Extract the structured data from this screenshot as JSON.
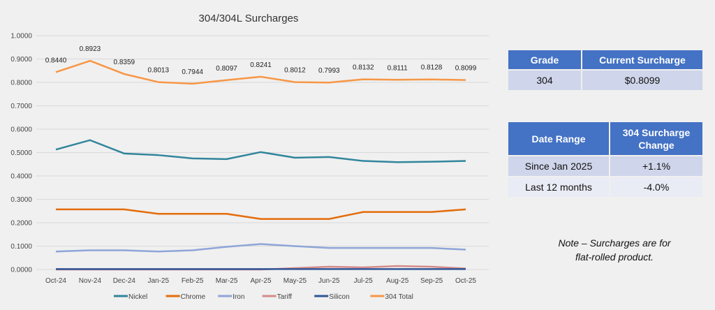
{
  "chart_data": {
    "type": "line",
    "title": "304/304L Surcharges",
    "categories": [
      "Oct-24",
      "Nov-24",
      "Dec-24",
      "Jan-25",
      "Feb-25",
      "Mar-25",
      "Apr-25",
      "May-25",
      "Jun-25",
      "Jul-25",
      "Aug-25",
      "Sep-25",
      "Oct-25"
    ],
    "ylim": [
      0,
      1.0
    ],
    "yticks": [
      "0.0000",
      "0.1000",
      "0.2000",
      "0.3000",
      "0.4000",
      "0.5000",
      "0.6000",
      "0.7000",
      "0.8000",
      "0.9000",
      "1.0000"
    ],
    "grid": true,
    "legend": "bottom",
    "series": [
      {
        "name": "Nickel",
        "color": "#31859c",
        "values": [
          0.513,
          0.553,
          0.496,
          0.489,
          0.475,
          0.472,
          0.502,
          0.478,
          0.481,
          0.464,
          0.459,
          0.461,
          0.464
        ]
      },
      {
        "name": "Chrome",
        "color": "#e46c0a",
        "values": [
          0.257,
          0.257,
          0.257,
          0.238,
          0.238,
          0.238,
          0.216,
          0.216,
          0.216,
          0.246,
          0.246,
          0.246,
          0.257
        ]
      },
      {
        "name": "Iron",
        "color": "#8ea5d8",
        "values": [
          0.077,
          0.082,
          0.082,
          0.077,
          0.082,
          0.097,
          0.109,
          0.1,
          0.092,
          0.092,
          0.092,
          0.092,
          0.085
        ]
      },
      {
        "name": "Tariff",
        "color": "#d48a8a",
        "values": [
          0,
          0,
          0,
          0,
          0,
          0,
          0,
          0.006,
          0.012,
          0.009,
          0.015,
          0.012,
          0.004
        ]
      },
      {
        "name": "Silicon",
        "color": "#2f5597",
        "values": [
          0.002,
          0.002,
          0.002,
          0.002,
          0.002,
          0.002,
          0.002,
          0.002,
          0.002,
          0.002,
          0.002,
          0.002,
          0.002
        ]
      },
      {
        "name": "304 Total",
        "color": "#f79646",
        "values": [
          0.844,
          0.8923,
          0.8359,
          0.8013,
          0.7944,
          0.8097,
          0.8241,
          0.8012,
          0.7993,
          0.8132,
          0.8111,
          0.8128,
          0.8099
        ],
        "labels": [
          "0.8440",
          "0.8923",
          "0.8359",
          "0.8013",
          "0.7944",
          "0.8097",
          "0.8241",
          "0.8012",
          "0.7993",
          "0.8132",
          "0.8111",
          "0.8128",
          "0.8099"
        ]
      }
    ]
  },
  "current_table": {
    "headers": [
      "Grade",
      "Current Surcharge"
    ],
    "rows": [
      [
        "304",
        "$0.8099"
      ]
    ]
  },
  "change_table": {
    "headers": [
      "Date Range",
      "304 Surcharge Change"
    ],
    "rows": [
      [
        "Since Jan 2025",
        "+1.1%"
      ],
      [
        "Last 12 months",
        "-4.0%"
      ]
    ]
  },
  "note": {
    "line1": "Note – Surcharges are for",
    "line2": "flat-rolled product."
  }
}
